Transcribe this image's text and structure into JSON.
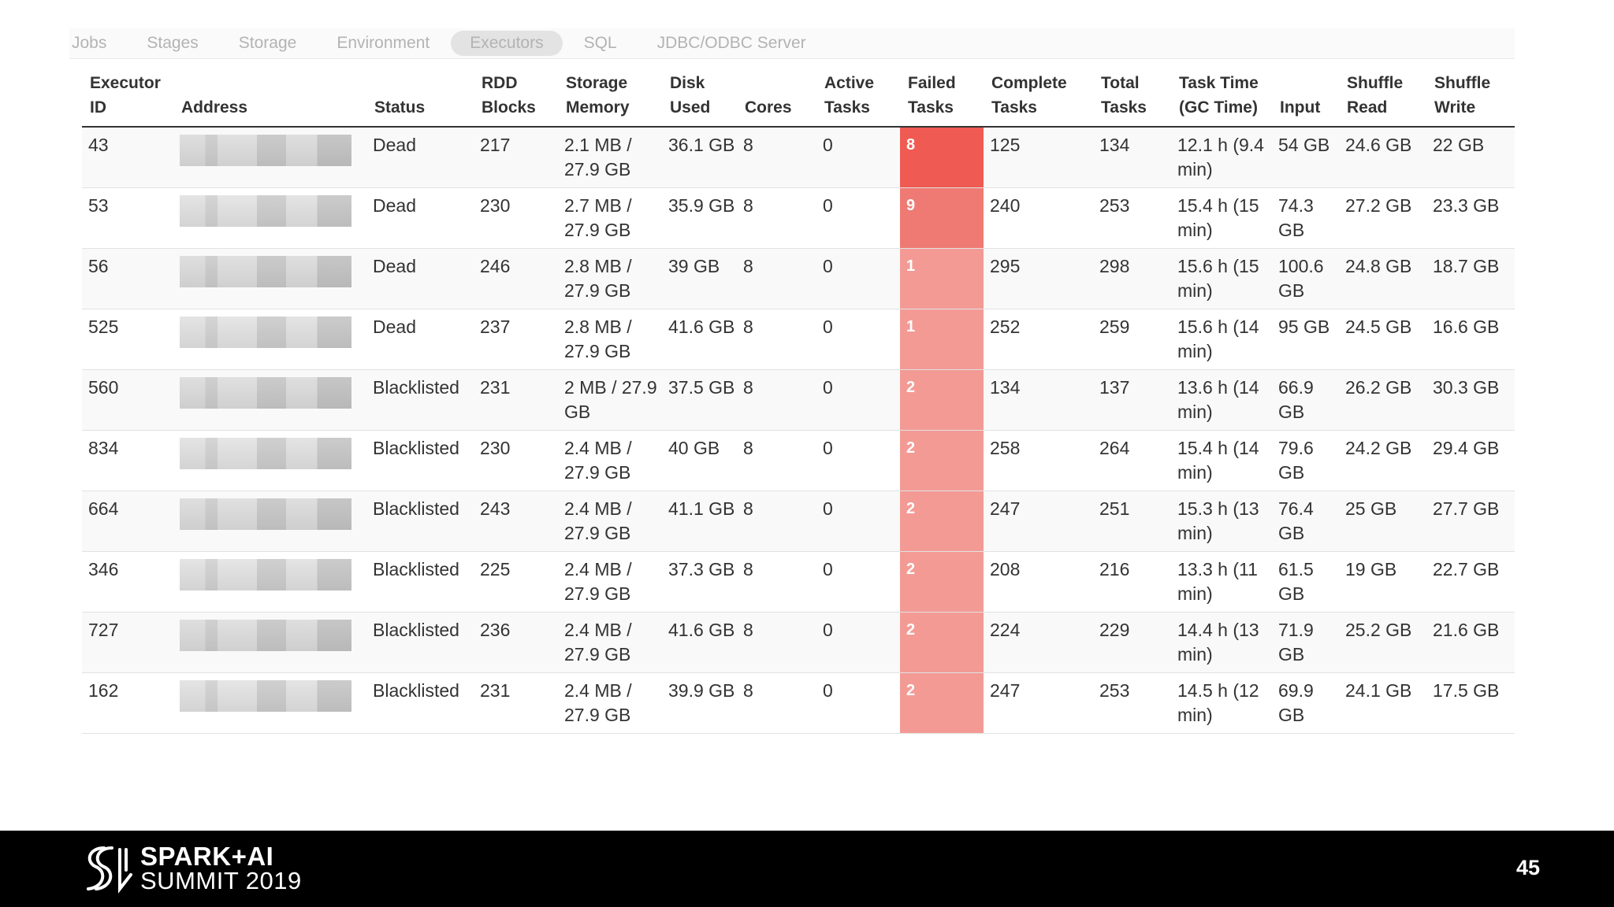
{
  "nav": {
    "tabs": [
      {
        "label": "Jobs"
      },
      {
        "label": "Stages"
      },
      {
        "label": "Storage"
      },
      {
        "label": "Environment"
      },
      {
        "label": "Executors",
        "active": true
      },
      {
        "label": "SQL"
      },
      {
        "label": "JDBC/ODBC Server"
      }
    ]
  },
  "table": {
    "headers": [
      {
        "label": "Executor ID",
        "w": 116
      },
      {
        "label": "Address",
        "w": 245
      },
      {
        "label": "Status",
        "w": 136
      },
      {
        "label": "RDD Blocks",
        "w": 107
      },
      {
        "label": "Storage Memory",
        "w": 132
      },
      {
        "label": "Disk Used",
        "w": 95
      },
      {
        "label": "Cores",
        "w": 101
      },
      {
        "label": "Active Tasks",
        "w": 106
      },
      {
        "label": "Failed Tasks",
        "w": 106
      },
      {
        "label": "Complete Tasks",
        "w": 139
      },
      {
        "label": "Total Tasks",
        "w": 99
      },
      {
        "label": "Task Time (GC Time)",
        "w": 128
      },
      {
        "label": "Input",
        "w": 85
      },
      {
        "label": "Shuffle Read",
        "w": 111
      },
      {
        "label": "Shuffle Write",
        "w": 112
      }
    ],
    "failed_color_max": "#ef5b52",
    "failed_color_mid": "#ef7a74",
    "failed_color_low": "#f39a95",
    "rows": [
      {
        "id": "43",
        "status": "Dead",
        "rdd": "217",
        "mem": "2.1 MB / 27.9 GB",
        "disk": "36.1 GB",
        "cores": "8",
        "active": "0",
        "failed": "8",
        "complete": "125",
        "total": "134",
        "time": "12.1 h (9.4 min)",
        "input": "54 GB",
        "sread": "24.6 GB",
        "swrite": "22 GB",
        "level": "max"
      },
      {
        "id": "53",
        "status": "Dead",
        "rdd": "230",
        "mem": "2.7 MB / 27.9 GB",
        "disk": "35.9 GB",
        "cores": "8",
        "active": "0",
        "failed": "9",
        "complete": "240",
        "total": "253",
        "time": "15.4 h (15 min)",
        "input": "74.3 GB",
        "sread": "27.2 GB",
        "swrite": "23.3 GB",
        "level": "mid"
      },
      {
        "id": "56",
        "status": "Dead",
        "rdd": "246",
        "mem": "2.8 MB / 27.9 GB",
        "disk": "39 GB",
        "cores": "8",
        "active": "0",
        "failed": "1",
        "complete": "295",
        "total": "298",
        "time": "15.6 h (15 min)",
        "input": "100.6 GB",
        "sread": "24.8 GB",
        "swrite": "18.7 GB",
        "level": "low"
      },
      {
        "id": "525",
        "status": "Dead",
        "rdd": "237",
        "mem": "2.8 MB / 27.9 GB",
        "disk": "41.6 GB",
        "cores": "8",
        "active": "0",
        "failed": "1",
        "complete": "252",
        "total": "259",
        "time": "15.6 h (14 min)",
        "input": "95 GB",
        "sread": "24.5 GB",
        "swrite": "16.6 GB",
        "level": "low"
      },
      {
        "id": "560",
        "status": "Blacklisted",
        "rdd": "231",
        "mem": "2 MB / 27.9 GB",
        "disk": "37.5 GB",
        "cores": "8",
        "active": "0",
        "failed": "2",
        "complete": "134",
        "total": "137",
        "time": "13.6 h (14 min)",
        "input": "66.9 GB",
        "sread": "26.2 GB",
        "swrite": "30.3 GB",
        "level": "low"
      },
      {
        "id": "834",
        "status": "Blacklisted",
        "rdd": "230",
        "mem": "2.4 MB / 27.9 GB",
        "disk": "40 GB",
        "cores": "8",
        "active": "0",
        "failed": "2",
        "complete": "258",
        "total": "264",
        "time": "15.4 h (14 min)",
        "input": "79.6 GB",
        "sread": "24.2 GB",
        "swrite": "29.4 GB",
        "level": "low"
      },
      {
        "id": "664",
        "status": "Blacklisted",
        "rdd": "243",
        "mem": "2.4 MB / 27.9 GB",
        "disk": "41.1 GB",
        "cores": "8",
        "active": "0",
        "failed": "2",
        "complete": "247",
        "total": "251",
        "time": "15.3 h (13 min)",
        "input": "76.4 GB",
        "sread": "25 GB",
        "swrite": "27.7 GB",
        "level": "low"
      },
      {
        "id": "346",
        "status": "Blacklisted",
        "rdd": "225",
        "mem": "2.4 MB / 27.9 GB",
        "disk": "37.3 GB",
        "cores": "8",
        "active": "0",
        "failed": "2",
        "complete": "208",
        "total": "216",
        "time": "13.3 h (11 min)",
        "input": "61.5 GB",
        "sread": "19 GB",
        "swrite": "22.7 GB",
        "level": "low"
      },
      {
        "id": "727",
        "status": "Blacklisted",
        "rdd": "236",
        "mem": "2.4 MB / 27.9 GB",
        "disk": "41.6 GB",
        "cores": "8",
        "active": "0",
        "failed": "2",
        "complete": "224",
        "total": "229",
        "time": "14.4 h (13 min)",
        "input": "71.9 GB",
        "sread": "25.2 GB",
        "swrite": "21.6 GB",
        "level": "low"
      },
      {
        "id": "162",
        "status": "Blacklisted",
        "rdd": "231",
        "mem": "2.4 MB / 27.9 GB",
        "disk": "39.9 GB",
        "cores": "8",
        "active": "0",
        "failed": "2",
        "complete": "247",
        "total": "253",
        "time": "14.5 h (12 min)",
        "input": "69.9 GB",
        "sread": "24.1 GB",
        "swrite": "17.5 GB",
        "level": "low"
      }
    ]
  },
  "footer": {
    "logo_line1": "SPARK+AI",
    "logo_line2": "SUMMIT 2019",
    "page_number": "45"
  }
}
